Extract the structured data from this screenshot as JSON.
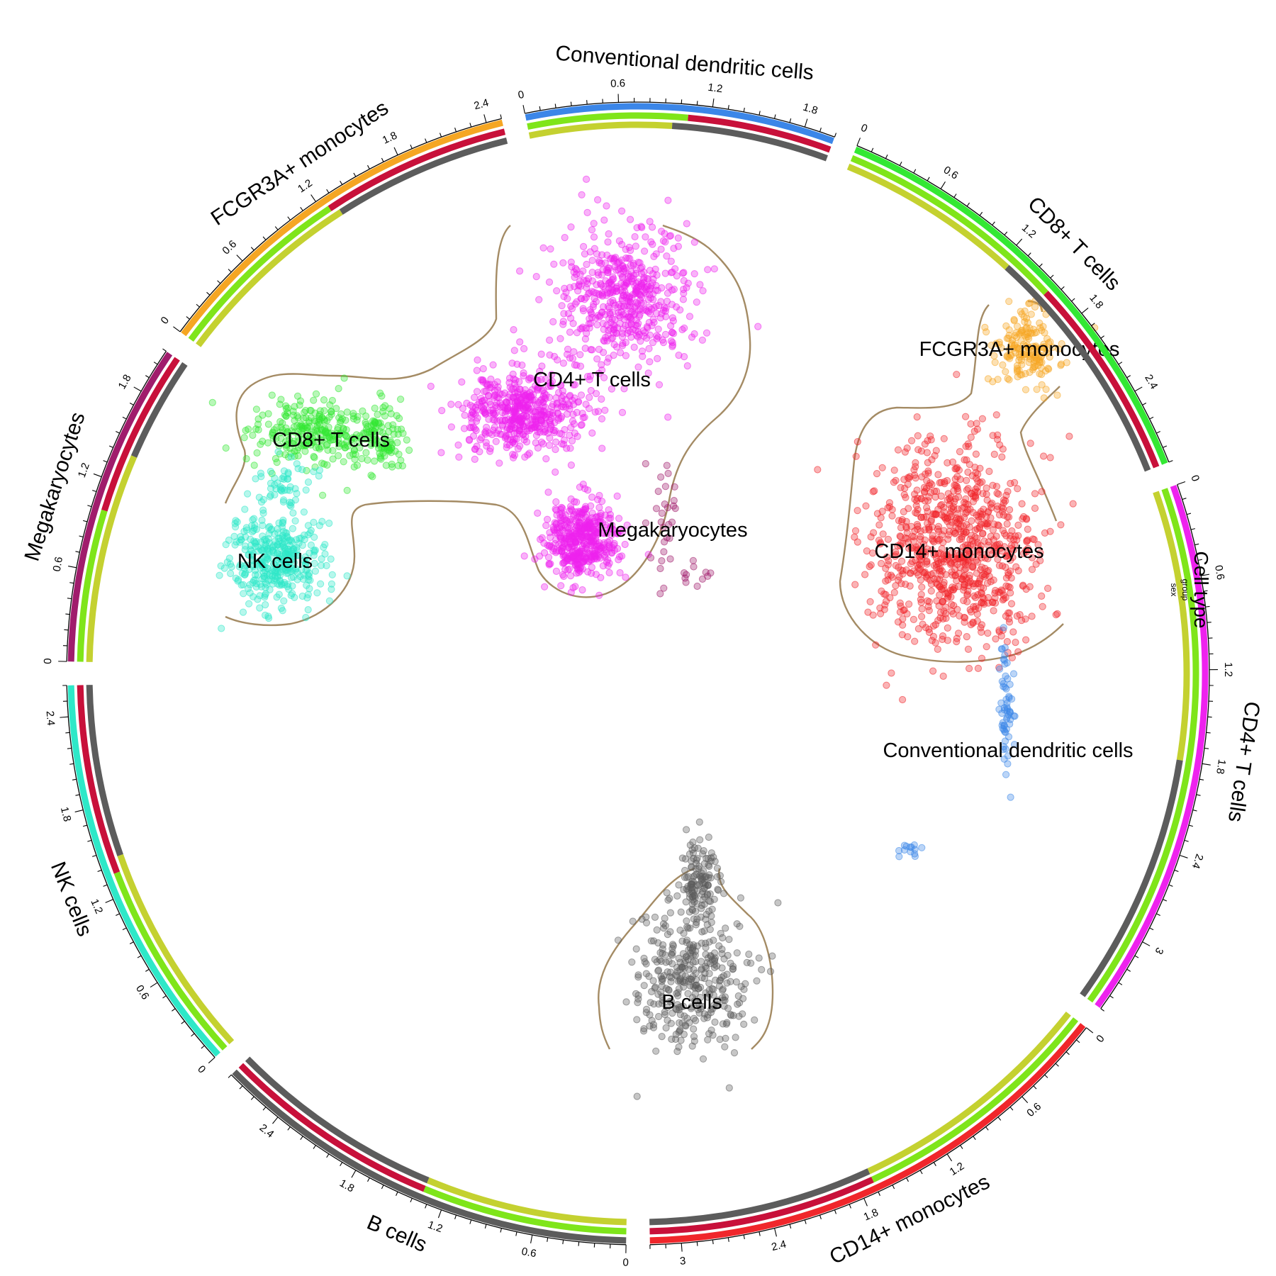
{
  "chart_data": {
    "type": "scatter",
    "track_legend": [
      "Cell type",
      "group",
      "sex"
    ],
    "sectors": [
      {
        "name": "CD14+ monocytes",
        "color": "#f0262b",
        "size": 3.2,
        "tick_labels": [
          "0",
          "0.6",
          "1.2",
          "1.8",
          "2.4",
          "3"
        ],
        "group": [
          {
            "from": 0,
            "to": 1.7,
            "color": "#7fe51a"
          },
          {
            "from": 1.7,
            "to": 3.2,
            "color": "#c8103a"
          }
        ],
        "sex": [
          {
            "from": 0,
            "to": 1.7,
            "color": "#c4d130"
          },
          {
            "from": 1.7,
            "to": 3.2,
            "color": "#5c5c5c"
          }
        ]
      },
      {
        "name": "B cells",
        "color": "#5c5c5c",
        "size": 2.8,
        "tick_labels": [
          "0",
          "0.6",
          "1.2",
          "1.8",
          "2.4"
        ],
        "group": [
          {
            "from": 0,
            "to": 1.35,
            "color": "#7fe51a"
          },
          {
            "from": 1.35,
            "to": 2.8,
            "color": "#c8103a"
          }
        ],
        "sex": [
          {
            "from": 0,
            "to": 1.35,
            "color": "#c4d130"
          },
          {
            "from": 1.35,
            "to": 2.8,
            "color": "#5c5c5c"
          }
        ]
      },
      {
        "name": "NK cells",
        "color": "#2ee8c8",
        "size": 2.6,
        "tick_labels": [
          "0",
          "0.6",
          "1.2",
          "1.8",
          "2.4"
        ],
        "group": [
          {
            "from": 0,
            "to": 1.35,
            "color": "#7fe51a"
          },
          {
            "from": 1.35,
            "to": 2.6,
            "color": "#c8103a"
          }
        ],
        "sex": [
          {
            "from": 0,
            "to": 1.45,
            "color": "#c4d130"
          },
          {
            "from": 1.45,
            "to": 2.6,
            "color": "#5c5c5c"
          }
        ]
      },
      {
        "name": "Megakaryocytes",
        "color": "#a01c6c",
        "size": 2.1,
        "tick_labels": [
          "0",
          "0.6",
          "1.2",
          "1.8"
        ],
        "group": [
          {
            "from": 0,
            "to": 1.0,
            "color": "#7fe51a"
          },
          {
            "from": 1.0,
            "to": 2.1,
            "color": "#c8103a"
          }
        ],
        "sex": [
          {
            "from": 0,
            "to": 1.4,
            "color": "#c4d130"
          },
          {
            "from": 1.4,
            "to": 2.1,
            "color": "#5c5c5c"
          }
        ]
      },
      {
        "name": "FCGR3A+ monocytes",
        "color": "#f5a623",
        "size": 2.5,
        "tick_labels": [
          "0",
          "0.6",
          "1.2",
          "1.8",
          "2.4"
        ],
        "group": [
          {
            "from": 0,
            "to": 1.25,
            "color": "#7fe51a"
          },
          {
            "from": 1.25,
            "to": 2.5,
            "color": "#c8103a"
          }
        ],
        "sex": [
          {
            "from": 0,
            "to": 1.3,
            "color": "#c4d130"
          },
          {
            "from": 1.3,
            "to": 2.5,
            "color": "#5c5c5c"
          }
        ]
      },
      {
        "name": "Conventional dendritic cells",
        "color": "#3b86e8",
        "size": 2.0,
        "tick_labels": [
          "0",
          "0.6",
          "1.2",
          "1.8"
        ],
        "group": [
          {
            "from": 0,
            "to": 1.05,
            "color": "#7fe51a"
          },
          {
            "from": 1.05,
            "to": 2.0,
            "color": "#c8103a"
          }
        ],
        "sex": [
          {
            "from": 0,
            "to": 0.95,
            "color": "#c4d130"
          },
          {
            "from": 0.95,
            "to": 2.0,
            "color": "#5c5c5c"
          }
        ]
      },
      {
        "name": "CD8+ T cells",
        "color": "#33e833",
        "size": 2.9,
        "tick_labels": [
          "0",
          "0.6",
          "1.2",
          "1.8",
          "2.4"
        ],
        "group": [
          {
            "from": 0,
            "to": 1.55,
            "color": "#7fe51a"
          },
          {
            "from": 1.55,
            "to": 2.9,
            "color": "#c8103a"
          }
        ],
        "sex": [
          {
            "from": 0,
            "to": 1.25,
            "color": "#c4d130"
          },
          {
            "from": 1.25,
            "to": 2.9,
            "color": "#5c5c5c"
          }
        ]
      },
      {
        "name": "CD4+ T cells",
        "color": "#ee22ee",
        "size": 3.5,
        "tick_labels": [
          "0",
          "0.6",
          "1.2",
          "1.8",
          "2.4",
          "3"
        ],
        "group": [
          {
            "from": 0,
            "to": 3.5,
            "color": "#7fe51a"
          }
        ],
        "sex": [
          {
            "from": 0,
            "to": 1.8,
            "color": "#c4d130"
          },
          {
            "from": 1.8,
            "to": 3.5,
            "color": "#5c5c5c"
          }
        ]
      }
    ],
    "clusters": [
      {
        "name": "CD4+ T cells",
        "color": "#ee22ee",
        "count": 1500
      },
      {
        "name": "CD8+ T cells",
        "color": "#33e833",
        "count": 360
      },
      {
        "name": "NK cells",
        "color": "#2ee8c8",
        "count": 420
      },
      {
        "name": "Megakaryocytes",
        "color": "#a01c6c",
        "count": 40
      },
      {
        "name": "FCGR3A+ monocytes",
        "color": "#f5a623",
        "count": 170
      },
      {
        "name": "CD14+ monocytes",
        "color": "#f0262b",
        "count": 850
      },
      {
        "name": "Conventional dendritic cells",
        "color": "#3b86e8",
        "count": 75
      },
      {
        "name": "B cells",
        "color": "#5c5c5c",
        "count": 480
      }
    ]
  }
}
